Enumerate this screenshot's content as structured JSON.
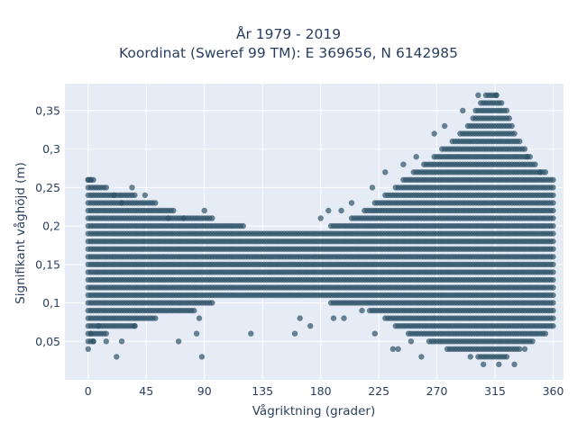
{
  "colors": {
    "plot_background": "#e5ecf6",
    "grid": "#ffffff",
    "marker": "#2e5268",
    "text": "#2a3f5f"
  },
  "chart_data": {
    "type": "scatter",
    "title": "År 1979 - 2019",
    "subtitle": "Koordinat (Sweref 99 TM): E 369656, N 6142985",
    "xlabel": "Vågriktning (grader)",
    "ylabel": "Signifikant våghöjd (m)",
    "xlim": [
      -18,
      368
    ],
    "ylim": [
      0.0,
      0.385
    ],
    "x_ticks": [
      0,
      45,
      90,
      135,
      180,
      225,
      270,
      315,
      360
    ],
    "x_tick_labels": [
      "0",
      "45",
      "90",
      "135",
      "180",
      "225",
      "270",
      "315",
      "360"
    ],
    "y_ticks": [
      0.05,
      0.1,
      0.15,
      0.2,
      0.25,
      0.3,
      0.35
    ],
    "y_tick_labels": [
      "0,05",
      "0,1",
      "0,15",
      "0,2",
      "0,25",
      "0,3",
      "0,35"
    ],
    "grid": true,
    "legend": "none",
    "marker_opacity": 0.7,
    "value_step_y": 0.01,
    "value_step_x": 2,
    "envelope": {
      "description": "per-direction range of wave heights (x in degrees, y in meters)",
      "x": [
        0,
        10,
        20,
        30,
        45,
        60,
        75,
        90,
        105,
        135,
        165,
        180,
        195,
        210,
        225,
        240,
        255,
        270,
        285,
        295,
        305,
        310,
        315,
        320,
        330,
        340,
        350,
        360
      ],
      "y_min": [
        0.05,
        0.06,
        0.07,
        0.07,
        0.08,
        0.09,
        0.09,
        0.1,
        0.11,
        0.11,
        0.11,
        0.11,
        0.1,
        0.1,
        0.09,
        0.07,
        0.06,
        0.05,
        0.04,
        0.04,
        0.03,
        0.03,
        0.03,
        0.03,
        0.04,
        0.05,
        0.06,
        0.07
      ],
      "y_max": [
        0.26,
        0.25,
        0.24,
        0.24,
        0.23,
        0.22,
        0.21,
        0.21,
        0.2,
        0.19,
        0.19,
        0.19,
        0.2,
        0.21,
        0.23,
        0.25,
        0.27,
        0.29,
        0.31,
        0.33,
        0.36,
        0.37,
        0.37,
        0.36,
        0.32,
        0.29,
        0.27,
        0.26
      ]
    },
    "outliers": [
      {
        "x": 0,
        "y": 0.04
      },
      {
        "x": 2,
        "y": 0.06
      },
      {
        "x": 4,
        "y": 0.05
      },
      {
        "x": 8,
        "y": 0.07
      },
      {
        "x": 14,
        "y": 0.05
      },
      {
        "x": 22,
        "y": 0.03
      },
      {
        "x": 26,
        "y": 0.05
      },
      {
        "x": 36,
        "y": 0.07
      },
      {
        "x": 70,
        "y": 0.05
      },
      {
        "x": 84,
        "y": 0.06
      },
      {
        "x": 88,
        "y": 0.03
      },
      {
        "x": 86,
        "y": 0.08
      },
      {
        "x": 126,
        "y": 0.06
      },
      {
        "x": 160,
        "y": 0.06
      },
      {
        "x": 164,
        "y": 0.08
      },
      {
        "x": 172,
        "y": 0.07
      },
      {
        "x": 190,
        "y": 0.08
      },
      {
        "x": 198,
        "y": 0.08
      },
      {
        "x": 212,
        "y": 0.09
      },
      {
        "x": 222,
        "y": 0.06
      },
      {
        "x": 236,
        "y": 0.04
      },
      {
        "x": 240,
        "y": 0.04
      },
      {
        "x": 250,
        "y": 0.05
      },
      {
        "x": 258,
        "y": 0.03
      },
      {
        "x": 0,
        "y": 0.26
      },
      {
        "x": 2,
        "y": 0.26
      },
      {
        "x": 20,
        "y": 0.24
      },
      {
        "x": 26,
        "y": 0.23
      },
      {
        "x": 34,
        "y": 0.25
      },
      {
        "x": 44,
        "y": 0.24
      },
      {
        "x": 62,
        "y": 0.21
      },
      {
        "x": 74,
        "y": 0.21
      },
      {
        "x": 90,
        "y": 0.22
      },
      {
        "x": 180,
        "y": 0.21
      },
      {
        "x": 186,
        "y": 0.22
      },
      {
        "x": 196,
        "y": 0.22
      },
      {
        "x": 204,
        "y": 0.23
      },
      {
        "x": 220,
        "y": 0.25
      },
      {
        "x": 230,
        "y": 0.27
      },
      {
        "x": 244,
        "y": 0.28
      },
      {
        "x": 254,
        "y": 0.29
      },
      {
        "x": 268,
        "y": 0.32
      },
      {
        "x": 276,
        "y": 0.33
      },
      {
        "x": 290,
        "y": 0.35
      },
      {
        "x": 302,
        "y": 0.37
      },
      {
        "x": 316,
        "y": 0.37
      },
      {
        "x": 324,
        "y": 0.35
      },
      {
        "x": 340,
        "y": 0.29
      },
      {
        "x": 350,
        "y": 0.27
      },
      {
        "x": 306,
        "y": 0.02
      },
      {
        "x": 318,
        "y": 0.02
      },
      {
        "x": 330,
        "y": 0.02
      },
      {
        "x": 296,
        "y": 0.03
      },
      {
        "x": 338,
        "y": 0.04
      }
    ]
  }
}
